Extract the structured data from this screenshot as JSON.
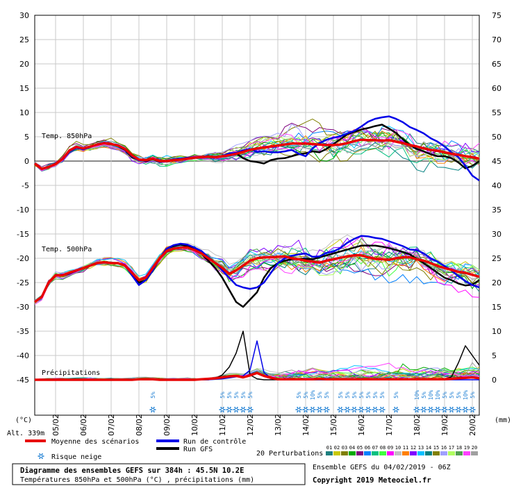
{
  "chart_data": {
    "type": "line",
    "title": "Diagramme des ensembles GEFS sur 384h : 45.5N 10.2E",
    "subtitle": "Températures 850hPa et 500hPa (°C) , précipitations (mm)",
    "run_info": "Ensemble GEFS du 04/02/2019 - 06Z",
    "copyright": "Copyright 2019 Meteociel.fr",
    "altitude": "Alt. 339m",
    "y_left_unit": "(°C)",
    "y_right_unit": "(mm)",
    "ylim_left": [
      -45,
      30
    ],
    "ylim_right": [
      0,
      75
    ],
    "xlim_h": [
      0,
      384
    ],
    "yticks_left": [
      "30",
      "25",
      "20",
      "15",
      "10",
      "5",
      "0",
      "-5",
      "-10",
      "-15",
      "-20",
      "-25",
      "-30",
      "-35",
      "-40",
      "-45"
    ],
    "yticks_right": [
      "75",
      "70",
      "65",
      "60",
      "55",
      "50",
      "45",
      "40",
      "35",
      "30",
      "25",
      "20",
      "15",
      "10",
      "5",
      "0"
    ],
    "x_ticks": [
      {
        "h": 18,
        "label": "05/02"
      },
      {
        "h": 42,
        "label": "06/02"
      },
      {
        "h": 66,
        "label": "07/02"
      },
      {
        "h": 90,
        "label": "08/02"
      },
      {
        "h": 114,
        "label": "09/02"
      },
      {
        "h": 138,
        "label": "10/02"
      },
      {
        "h": 162,
        "label": "11/02"
      },
      {
        "h": 186,
        "label": "12/02"
      },
      {
        "h": 210,
        "label": "13/02"
      },
      {
        "h": 234,
        "label": "14/02"
      },
      {
        "h": 258,
        "label": "15/02"
      },
      {
        "h": 282,
        "label": "16/02"
      },
      {
        "h": 306,
        "label": "17/02"
      },
      {
        "h": 330,
        "label": "18/02"
      },
      {
        "h": 354,
        "label": "19/02"
      },
      {
        "h": 378,
        "label": "20/02"
      }
    ],
    "panel_labels": {
      "t850": "Temp. 850hPa",
      "t500": "Temp. 500hPa",
      "precip": "Précipitations"
    },
    "legend": {
      "mean": "Moyenne des scénarios",
      "control": "Run de contrôle",
      "gfs": "Run GFS",
      "snow": "Risque neige",
      "perturbations": "20 Perturbations",
      "pert_numbers": [
        "01",
        "02",
        "03",
        "04",
        "05",
        "06",
        "07",
        "08",
        "09",
        "10",
        "11",
        "12",
        "13",
        "14",
        "15",
        "16",
        "17",
        "18",
        "19",
        "20"
      ]
    },
    "colors": {
      "mean": "#e80000",
      "control": "#0000e8",
      "gfs": "#000000",
      "snow": "#2a86d6",
      "pert": [
        "#1e7f7f",
        "#c8c800",
        "#7f7f00",
        "#00aa00",
        "#7f007f",
        "#0080ff",
        "#00c080",
        "#40ff40",
        "#ff00ff",
        "#c0c0c0",
        "#ff8000",
        "#8000ff",
        "#00c0ff",
        "#008080",
        "#808000",
        "#a0a0ff",
        "#b0ff60",
        "#50a050",
        "#ff40ff",
        "#a0a0a0"
      ]
    },
    "t850": {
      "x_h": [
        0,
        6,
        12,
        18,
        24,
        30,
        36,
        42,
        48,
        54,
        60,
        66,
        72,
        78,
        84,
        90,
        96,
        102,
        108,
        114,
        120,
        126,
        132,
        138,
        144,
        150,
        156,
        162,
        168,
        174,
        180,
        186,
        192,
        198,
        204,
        210,
        216,
        222,
        228,
        234,
        240,
        246,
        252,
        258,
        264,
        270,
        276,
        282,
        288,
        294,
        300,
        306,
        312,
        318,
        324,
        330,
        336,
        342,
        348,
        354,
        360,
        366,
        372,
        378,
        384
      ],
      "mean": [
        -0.5,
        -1.6,
        -1.2,
        -0.6,
        0.4,
        2.2,
        2.9,
        2.6,
        3.0,
        3.4,
        3.7,
        3.5,
        3.2,
        2.5,
        1.2,
        0.3,
        0.2,
        0.5,
        0.0,
        0.0,
        0.2,
        0.3,
        0.5,
        0.7,
        0.8,
        0.9,
        0.8,
        1.0,
        1.2,
        1.5,
        1.9,
        2.3,
        2.6,
        2.8,
        3.0,
        3.2,
        3.4,
        3.6,
        3.6,
        3.6,
        3.5,
        3.4,
        3.3,
        3.3,
        3.4,
        3.7,
        4.1,
        4.4,
        4.3,
        4.3,
        4.2,
        4.3,
        4.0,
        3.7,
        3.3,
        3.0,
        2.6,
        2.3,
        2.1,
        1.8,
        1.5,
        1.3,
        1.0,
        0.8,
        0.5
      ],
      "control": [
        -0.5,
        -1.5,
        -1.3,
        -0.6,
        0.4,
        2.0,
        2.7,
        2.4,
        2.9,
        3.5,
        3.8,
        3.5,
        3.3,
        2.4,
        1.0,
        0.1,
        0.1,
        0.6,
        -0.2,
        0.0,
        0.4,
        0.5,
        0.7,
        0.8,
        0.8,
        1.0,
        0.8,
        1.1,
        1.6,
        1.7,
        2.2,
        2.5,
        1.9,
        2.0,
        1.8,
        1.8,
        2.0,
        2.3,
        1.5,
        1.0,
        2.6,
        3.7,
        4.4,
        4.8,
        5.1,
        5.7,
        6.2,
        7.1,
        8.1,
        8.7,
        9.0,
        9.2,
        8.7,
        8.0,
        7.0,
        6.4,
        5.7,
        4.7,
        4.0,
        3.0,
        1.8,
        0.8,
        -1.0,
        -3.0,
        -4.0
      ],
      "gfs": [
        -0.5,
        -1.6,
        -1.2,
        -0.6,
        0.4,
        2.2,
        2.9,
        2.6,
        3.0,
        3.4,
        3.7,
        3.5,
        3.1,
        2.3,
        0.8,
        0.2,
        0.0,
        0.4,
        -0.2,
        0.1,
        0.3,
        0.4,
        0.6,
        0.8,
        0.9,
        1.0,
        0.9,
        1.0,
        1.4,
        1.6,
        0.6,
        0.0,
        -0.2,
        -0.5,
        0.2,
        0.5,
        0.6,
        1.0,
        1.4,
        1.6,
        2.0,
        1.8,
        2.5,
        3.5,
        4.5,
        5.5,
        6.0,
        6.5,
        6.8,
        7.2,
        7.5,
        6.7,
        5.8,
        4.5,
        3.3,
        2.5,
        2.0,
        1.4,
        1.0,
        1.0,
        0.6,
        -0.3,
        -1.5,
        -1.0,
        0.0
      ]
    },
    "t500": {
      "x_h": [
        0,
        6,
        12,
        18,
        24,
        30,
        36,
        42,
        48,
        54,
        60,
        66,
        72,
        78,
        84,
        90,
        96,
        102,
        108,
        114,
        120,
        126,
        132,
        138,
        144,
        150,
        156,
        162,
        168,
        174,
        180,
        186,
        192,
        198,
        204,
        210,
        216,
        222,
        228,
        234,
        240,
        246,
        252,
        258,
        264,
        270,
        276,
        282,
        288,
        294,
        300,
        306,
        312,
        318,
        324,
        330,
        336,
        342,
        348,
        354,
        360,
        366,
        372,
        378,
        384
      ],
      "mean": [
        -29,
        -28,
        -25,
        -23.5,
        -23.5,
        -23,
        -22.5,
        -22,
        -21.5,
        -21,
        -20.8,
        -21,
        -21,
        -21.5,
        -23,
        -24.5,
        -24,
        -22,
        -20,
        -18.5,
        -18,
        -17.8,
        -17.8,
        -18.3,
        -19,
        -20,
        -21,
        -22,
        -23.2,
        -22.5,
        -21.5,
        -20.5,
        -20,
        -19.8,
        -19.8,
        -19.7,
        -19.6,
        -20,
        -20.2,
        -20.5,
        -20.7,
        -20.9,
        -20.5,
        -20.2,
        -19.9,
        -19.6,
        -19.4,
        -19.4,
        -19.8,
        -20.1,
        -20.2,
        -20.3,
        -20.0,
        -19.8,
        -19.8,
        -20.2,
        -20.5,
        -21.0,
        -21.6,
        -22.0,
        -22.4,
        -22.8,
        -23.0,
        -23.4,
        -23.8
      ],
      "control": [
        -29,
        -28,
        -25,
        -23.5,
        -23.5,
        -23.2,
        -22.6,
        -22,
        -21.5,
        -21,
        -20.8,
        -21,
        -21,
        -21.5,
        -23.5,
        -25.5,
        -24.5,
        -22.5,
        -20,
        -18,
        -17.3,
        -17,
        -17.2,
        -17.8,
        -18.5,
        -19.8,
        -21,
        -22.5,
        -24,
        -25.5,
        -26.0,
        -26.3,
        -26.0,
        -25,
        -23,
        -21,
        -20,
        -19.5,
        -19.2,
        -19.0,
        -19.7,
        -19.6,
        -18.9,
        -18.6,
        -17.9,
        -16.8,
        -16.0,
        -15.4,
        -15.5,
        -15.8,
        -16.0,
        -16.5,
        -17.0,
        -17.5,
        -18.2,
        -18.3,
        -19.0,
        -20.0,
        -20.7,
        -21.6,
        -22.5,
        -23.7,
        -24.7,
        -25.5,
        -26.0
      ],
      "gfs": [
        -29,
        -28,
        -25,
        -23.5,
        -23.5,
        -23,
        -22.5,
        -22,
        -21.5,
        -21,
        -20.8,
        -21,
        -21,
        -21.5,
        -23.2,
        -25,
        -24.5,
        -22.5,
        -20,
        -18,
        -17.5,
        -17.2,
        -17.5,
        -18,
        -19,
        -20.5,
        -22,
        -24,
        -26.5,
        -29,
        -30.0,
        -28.5,
        -27,
        -24,
        -22,
        -21,
        -20.5,
        -20.2,
        -20.1,
        -20.1,
        -20.2,
        -19.8,
        -19.4,
        -19.0,
        -18.6,
        -18.2,
        -17.8,
        -17.4,
        -17.4,
        -17.4,
        -17.6,
        -17.9,
        -18.3,
        -18.7,
        -19.2,
        -20.1,
        -21.0,
        -22.0,
        -23.0,
        -24.0,
        -24.5,
        -25.2,
        -25.6,
        -25.4,
        -24.5
      ]
    },
    "precip": {
      "x_h": [
        0,
        6,
        12,
        18,
        24,
        30,
        36,
        42,
        48,
        54,
        60,
        66,
        72,
        78,
        84,
        90,
        96,
        102,
        108,
        114,
        120,
        126,
        132,
        138,
        144,
        150,
        156,
        162,
        168,
        174,
        180,
        186,
        192,
        198,
        204,
        210,
        216,
        222,
        228,
        234,
        240,
        246,
        252,
        258,
        264,
        270,
        276,
        282,
        288,
        294,
        300,
        306,
        312,
        318,
        324,
        330,
        336,
        342,
        348,
        354,
        360,
        366,
        372,
        378,
        384
      ],
      "mean": [
        0,
        0,
        0,
        0,
        0,
        0,
        0,
        0,
        0,
        0,
        0,
        0,
        0,
        0,
        0,
        0.1,
        0.1,
        0.1,
        0,
        0,
        0,
        0,
        0,
        0,
        0.1,
        0.2,
        0.3,
        0.5,
        0.7,
        0.8,
        0.5,
        0.9,
        1.4,
        0.8,
        0.4,
        0.1,
        0.1,
        0.1,
        0.1,
        0.1,
        0.1,
        0.2,
        0.1,
        0.1,
        0.1,
        0.1,
        0.1,
        0.1,
        0.1,
        0.1,
        0.1,
        0.1,
        0.1,
        0.1,
        0.1,
        0.1,
        0.1,
        0.1,
        0.1,
        0.1,
        0.2,
        0.3,
        0.4,
        0.5,
        0.3
      ],
      "gfs": [
        0,
        0,
        0,
        0,
        0,
        0,
        0,
        0,
        0,
        0,
        0,
        0,
        0,
        0,
        0,
        0,
        0,
        0,
        0,
        0,
        0,
        0,
        0,
        0,
        0,
        0,
        0.3,
        1.0,
        2.6,
        5.5,
        10.0,
        1.0,
        0.2,
        0,
        0,
        0,
        0,
        0,
        0,
        0,
        0,
        0,
        0,
        0,
        0,
        0,
        0,
        0,
        0,
        0,
        0,
        0,
        0,
        0,
        0,
        0,
        0,
        0,
        0,
        0.1,
        0.6,
        3.5,
        7.0,
        5.0,
        3.0
      ],
      "control": [
        0,
        0,
        0,
        0,
        0,
        0,
        0,
        0,
        0,
        0,
        0,
        0,
        0,
        0,
        0,
        0,
        0,
        0,
        0,
        0,
        0,
        0,
        0,
        0,
        0,
        0,
        0.1,
        0.2,
        0.4,
        0.6,
        0.8,
        2.0,
        8.0,
        1.5,
        0.3,
        0,
        0,
        0,
        0,
        0,
        0,
        0,
        0,
        0,
        0,
        0,
        0,
        0,
        0,
        0,
        0,
        0,
        0,
        0,
        0,
        0,
        0,
        0,
        0,
        0,
        0,
        0,
        0,
        0,
        0
      ]
    },
    "snow_risk": [
      {
        "h": 102,
        "label": "5%"
      },
      {
        "h": 162,
        "label": "5%"
      },
      {
        "h": 168,
        "label": "5%"
      },
      {
        "h": 174,
        "label": "5%"
      },
      {
        "h": 180,
        "label": "5%"
      },
      {
        "h": 186,
        "label": "5%"
      },
      {
        "h": 228,
        "label": "5%"
      },
      {
        "h": 234,
        "label": "5%"
      },
      {
        "h": 240,
        "label": "10%"
      },
      {
        "h": 246,
        "label": "5%"
      },
      {
        "h": 252,
        "label": "5%"
      },
      {
        "h": 264,
        "label": "5%"
      },
      {
        "h": 270,
        "label": "5%"
      },
      {
        "h": 276,
        "label": "5%"
      },
      {
        "h": 282,
        "label": "5%"
      },
      {
        "h": 288,
        "label": "5%"
      },
      {
        "h": 294,
        "label": "5%"
      },
      {
        "h": 300,
        "label": "5%"
      },
      {
        "h": 312,
        "label": "5%"
      },
      {
        "h": 330,
        "label": "10%"
      },
      {
        "h": 336,
        "label": "5%"
      },
      {
        "h": 342,
        "label": "10%"
      },
      {
        "h": 348,
        "label": "10%"
      },
      {
        "h": 354,
        "label": "5%"
      },
      {
        "h": 360,
        "label": "5%"
      },
      {
        "h": 366,
        "label": "5%"
      },
      {
        "h": 372,
        "label": "10%"
      },
      {
        "h": 378,
        "label": "5%"
      }
    ]
  }
}
